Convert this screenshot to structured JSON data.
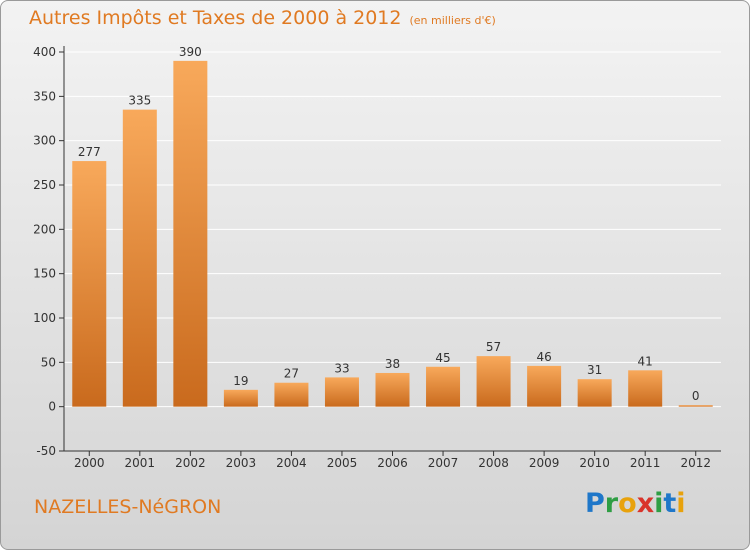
{
  "header": {
    "title": "Autres Impôts et Taxes de 2000 à 2012",
    "subtitle": "(en milliers d'€)"
  },
  "footer": {
    "commune": "NAZELLES-NéGRON",
    "logo_letters": [
      "P",
      "r",
      "o",
      "x",
      "i",
      "t",
      "i"
    ],
    "logo_colors": [
      "#1f77c9",
      "#2f9e44",
      "#e8a20c",
      "#d9342b",
      "#2f9e44",
      "#1f77c9",
      "#e8a20c"
    ]
  },
  "colors": {
    "accent": "#e07a22",
    "bar_light": "#f8a95b",
    "bar_dark": "#c96a1d",
    "grid": "#ffffff",
    "axis": "#333333"
  },
  "chart_data": {
    "type": "bar",
    "categories": [
      "2000",
      "2001",
      "2002",
      "2003",
      "2004",
      "2005",
      "2006",
      "2007",
      "2008",
      "2009",
      "2010",
      "2011",
      "2012"
    ],
    "values": [
      277,
      335,
      390,
      19,
      27,
      33,
      38,
      45,
      57,
      46,
      31,
      41,
      0
    ],
    "ylim": [
      -50,
      400
    ],
    "yticks": [
      -50,
      0,
      50,
      100,
      150,
      200,
      250,
      300,
      350,
      400
    ],
    "grid": true
  }
}
